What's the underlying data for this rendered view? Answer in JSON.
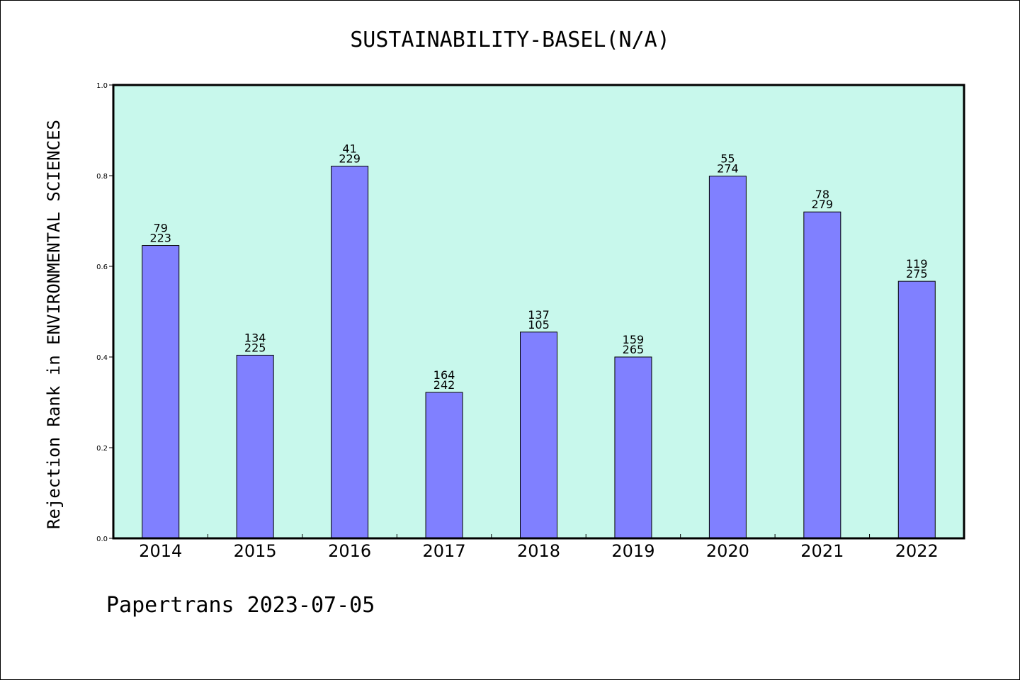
{
  "chart_data": {
    "type": "bar",
    "title": "SUSTAINABILITY-BASEL(N/A)",
    "ylabel": "Rejection Rank in ENVIRONMENTAL SCIENCES",
    "xlabel": "",
    "ylim": [
      0.0,
      1.0
    ],
    "yticks": [
      "0.0",
      "0.2",
      "0.4",
      "0.6",
      "0.8",
      "1.0"
    ],
    "ytick_values": [
      0.0,
      0.2,
      0.4,
      0.6,
      0.8,
      1.0
    ],
    "categories": [
      "2014",
      "2015",
      "2016",
      "2017",
      "2018",
      "2019",
      "2020",
      "2021",
      "2022"
    ],
    "values": [
      0.646,
      0.404,
      0.821,
      0.322,
      0.455,
      0.4,
      0.799,
      0.72,
      0.567
    ],
    "labels_top": [
      "79",
      "134",
      "41",
      "164",
      "137",
      "159",
      "55",
      "78",
      "119"
    ],
    "labels_bottom": [
      "223",
      "225",
      "229",
      "242",
      "105",
      "265",
      "274",
      "279",
      "275"
    ],
    "grid": false,
    "colors": {
      "plot_background": "#c8f8ec",
      "bar_fill": "#8080ff",
      "bar_stroke": "#000000",
      "axis": "#000000"
    }
  },
  "footer": {
    "text": "Papertrans 2023-07-05"
  }
}
